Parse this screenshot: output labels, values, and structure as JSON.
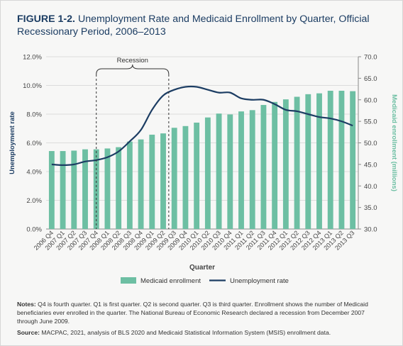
{
  "figure": {
    "label": "FIGURE 1-2.",
    "title": "Unemployment Rate and Medicaid Enrollment by Quarter, Official Recessionary Period, 2006–2013"
  },
  "notes": {
    "label": "Notes:",
    "text": "Q4 is fourth quarter. Q1 is first quarter. Q2 is second quarter. Q3 is third quarter. Enrollment shows the number of Medicaid beneficiaries ever enrolled in the quarter. The National Bureau of Economic Research declared a recession from December 2007 through June 2009."
  },
  "source": {
    "label": "Source:",
    "text": "MACPAC, 2021, analysis of BLS 2020 and Medicaid Statistical Information System (MSIS) enrollment data."
  },
  "colors": {
    "bars": "#6dbfa3",
    "line": "#1c3d63",
    "grid": "#dcdcdc",
    "left_axis_title": "#1c3d63",
    "right_axis_title": "#6dbfa3",
    "recession_bracket": "#333333"
  },
  "chart_data": {
    "type": "bar+line",
    "xlabel": "Quarter",
    "ylabel_left": "Unemployment rate",
    "ylabel_right": "Medicaid enrollment (millions)",
    "ylim_left": [
      0,
      12
    ],
    "yticks_left": [
      "0.0%",
      "2.0%",
      "4.0%",
      "6.0%",
      "8.0%",
      "10.0%",
      "12.0%"
    ],
    "ylim_right": [
      30,
      70
    ],
    "yticks_right": [
      "30.0",
      "35.0",
      "40.0",
      "45.0",
      "50.0",
      "55.0",
      "60.0",
      "65.0",
      "70.0"
    ],
    "grid": true,
    "legend_position": "bottom",
    "annotation": {
      "text": "Recession",
      "start": "2007 Q4",
      "end": "2009 Q2"
    },
    "categories": [
      "2006 Q4",
      "2007 Q1",
      "2007 Q2",
      "2007 Q3",
      "2007 Q4",
      "2008 Q1",
      "2008 Q2",
      "2008 Q3",
      "2008 Q4",
      "2009 Q1",
      "2009 Q2",
      "2009 Q3",
      "2009 Q4",
      "2010 Q1",
      "2010 Q2",
      "2010 Q3",
      "2010 Q4",
      "2011 Q1",
      "2011 Q2",
      "2011 Q3",
      "2011 Q4",
      "2012 Q1",
      "2012 Q2",
      "2012 Q3",
      "2012 Q4",
      "2013 Q1",
      "2013 Q2",
      "2013 Q3"
    ],
    "series": [
      {
        "name": "Medicaid enrollment",
        "type": "bar",
        "axis": "right",
        "values": [
          48.1,
          48.1,
          48.2,
          48.5,
          48.5,
          48.7,
          49.0,
          50.3,
          50.8,
          51.9,
          52.2,
          53.5,
          53.9,
          54.7,
          55.9,
          56.8,
          56.6,
          57.3,
          57.6,
          58.8,
          59.5,
          60.1,
          60.7,
          61.3,
          61.5,
          62.1,
          62.1,
          62.0
        ]
      },
      {
        "name": "Unemployment rate",
        "type": "line",
        "axis": "left",
        "values": [
          4.5,
          4.45,
          4.5,
          4.7,
          4.8,
          5.0,
          5.4,
          6.1,
          6.9,
          8.3,
          9.3,
          9.7,
          9.9,
          9.9,
          9.7,
          9.5,
          9.5,
          9.1,
          9.0,
          9.0,
          8.7,
          8.3,
          8.2,
          8.0,
          7.8,
          7.7,
          7.5,
          7.2
        ]
      }
    ]
  }
}
